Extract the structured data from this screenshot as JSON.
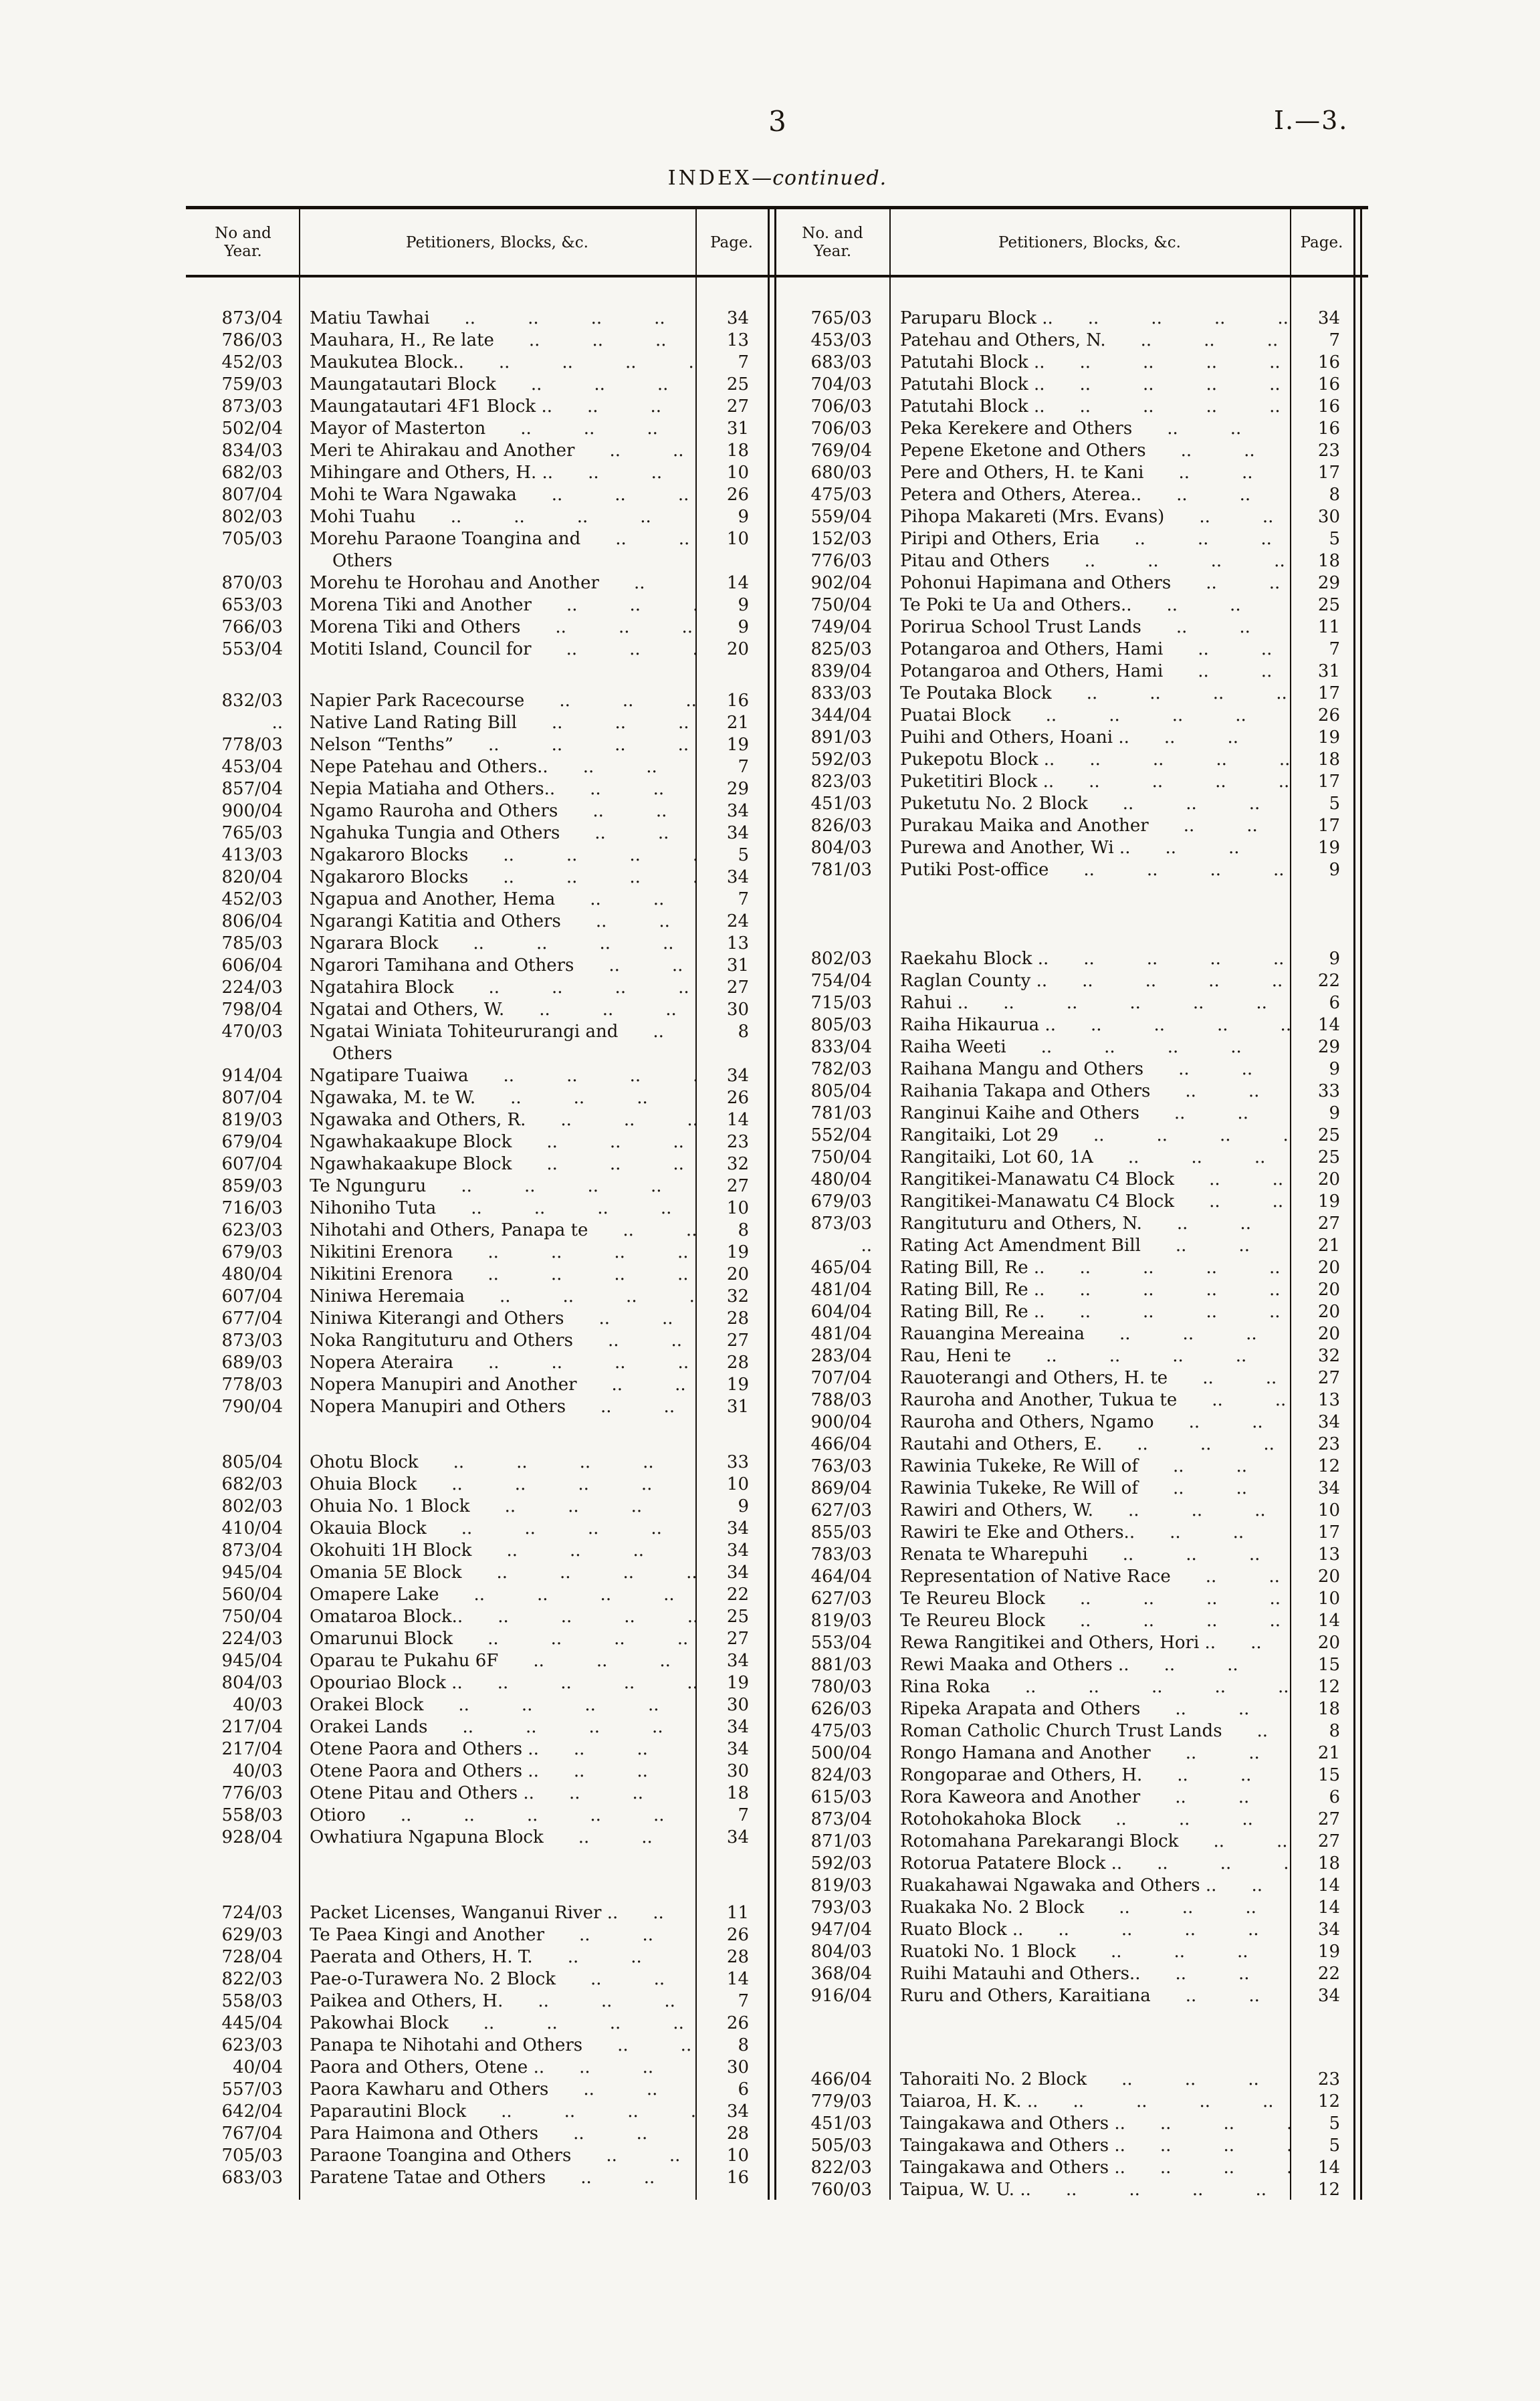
{
  "page": {
    "folio": "3",
    "doc_ref": "I.—3.",
    "title": "INDEX",
    "title_continued": "—continued."
  },
  "table": {
    "left": {
      "headers": {
        "no_year": "No and Year.",
        "petitioners": "Petitioners, Blocks, &c.",
        "page": "Page."
      },
      "rows": [
        {
          "no": "873/04",
          "name": "Matiu Tawhai",
          "page": "34"
        },
        {
          "no": "786/03",
          "name": "Mauhara, H., Re late",
          "page": "13"
        },
        {
          "no": "452/03",
          "name": "Maukutea Block..",
          "page": "7"
        },
        {
          "no": "759/03",
          "name": "Maungatautari Block",
          "page": "25"
        },
        {
          "no": "873/03",
          "name": "Maungatautari 4F1 Block ..",
          "page": "27"
        },
        {
          "no": "502/04",
          "name": "Mayor of Masterton",
          "page": "31"
        },
        {
          "no": "834/03",
          "name": "Meri te Ahirakau and Another",
          "page": "18"
        },
        {
          "no": "682/03",
          "name": "Mihingare and Others, H. ..",
          "page": "10"
        },
        {
          "no": "807/04",
          "name": "Mohi te Wara Ngawaka",
          "page": "26"
        },
        {
          "no": "802/03",
          "name": "Mohi Tuahu",
          "page": "9"
        },
        {
          "no": "705/03",
          "name": "Morehu Paraone Toangina and",
          "name2": "Others",
          "page": "10"
        },
        {
          "no": "870/03",
          "name": "Morehu te Horohau and Another",
          "page": "14"
        },
        {
          "no": "653/03",
          "name": "Morena Tiki and Another",
          "page": "9"
        },
        {
          "no": "766/03",
          "name": "Morena Tiki and Others",
          "page": "9"
        },
        {
          "no": "553/04",
          "name": "Motiti Island, Council for",
          "page": "20"
        },
        {
          "gap": 44
        },
        {
          "no": "832/03",
          "name": "Napier Park Racecourse",
          "page": "16"
        },
        {
          "no": "..",
          "name": "Native Land Rating Bill",
          "page": "21"
        },
        {
          "no": "778/03",
          "name": "Nelson “Tenths”",
          "page": "19"
        },
        {
          "no": "453/04",
          "name": "Nepe Patehau and Others..",
          "page": "7"
        },
        {
          "no": "857/04",
          "name": "Nepia Matiaha and Others..",
          "page": "29"
        },
        {
          "no": "900/04",
          "name": "Ngamo Rauroha and Others",
          "page": "34"
        },
        {
          "no": "765/03",
          "name": "Ngahuka Tungia and Others",
          "page": "34"
        },
        {
          "no": "413/03",
          "name": "Ngakaroro Blocks",
          "page": "5"
        },
        {
          "no": "820/04",
          "name": "Ngakaroro Blocks",
          "page": "34"
        },
        {
          "no": "452/03",
          "name": "Ngapua and Another, Hema",
          "page": "7"
        },
        {
          "no": "806/04",
          "name": "Ngarangi Katitia and Others",
          "page": "24"
        },
        {
          "no": "785/03",
          "name": "Ngarara Block",
          "page": "13"
        },
        {
          "no": "606/04",
          "name": "Ngarori Tamihana and Others",
          "page": "31"
        },
        {
          "no": "224/03",
          "name": "Ngatahira Block",
          "page": "27"
        },
        {
          "no": "798/04",
          "name": "Ngatai and Others, W.",
          "page": "30"
        },
        {
          "no": "470/03",
          "name": "Ngatai Winiata Tohiteururangi and",
          "name2": "Others",
          "page": "8"
        },
        {
          "no": "914/04",
          "name": "Ngatipare Tuaiwa",
          "page": "34"
        },
        {
          "no": "807/04",
          "name": "Ngawaka, M. te W.",
          "page": "26"
        },
        {
          "no": "819/03",
          "name": "Ngawaka and Others, R.",
          "page": "14"
        },
        {
          "no": "679/04",
          "name": "Ngawhakaakupe Block",
          "page": "23"
        },
        {
          "no": "607/04",
          "name": "Ngawhakaakupe Block",
          "page": "32"
        },
        {
          "no": "859/03",
          "name": "Te Ngunguru",
          "page": "27"
        },
        {
          "no": "716/03",
          "name": "Nihoniho Tuta",
          "page": "10"
        },
        {
          "no": "623/03",
          "name": "Nihotahi and Others, Panapa te",
          "page": "8"
        },
        {
          "no": "679/03",
          "name": "Nikitini Erenora",
          "page": "19"
        },
        {
          "no": "480/04",
          "name": "Nikitini Erenora",
          "page": "20"
        },
        {
          "no": "607/04",
          "name": "Niniwa Heremaia",
          "page": "32"
        },
        {
          "no": "677/04",
          "name": "Niniwa Kiterangi and Others",
          "page": "28"
        },
        {
          "no": "873/03",
          "name": "Noka Rangituturu and Others",
          "page": "27"
        },
        {
          "no": "689/03",
          "name": "Nopera Ateraira",
          "page": "28"
        },
        {
          "no": "778/03",
          "name": "Nopera Manupiri and Another",
          "page": "19"
        },
        {
          "no": "790/04",
          "name": "Nopera Manupiri and Others",
          "page": "31"
        },
        {
          "gap": 50
        },
        {
          "no": "805/04",
          "name": "Ohotu Block",
          "page": "33"
        },
        {
          "no": "682/03",
          "name": "Ohuia Block",
          "page": "10"
        },
        {
          "no": "802/03",
          "name": "Ohuia No. 1 Block",
          "page": "9"
        },
        {
          "no": "410/04",
          "name": "Okauia Block",
          "page": "34"
        },
        {
          "no": "873/04",
          "name": "Okohuiti 1H Block",
          "page": "34"
        },
        {
          "no": "945/04",
          "name": "Omania 5E Block",
          "page": "34"
        },
        {
          "no": "560/04",
          "name": "Omapere Lake",
          "page": "22"
        },
        {
          "no": "750/04",
          "name": "Omataroa Block..",
          "page": "25"
        },
        {
          "no": "224/03",
          "name": "Omarunui Block",
          "page": "27"
        },
        {
          "no": "945/04",
          "name": "Oparau te Pukahu 6F",
          "page": "34"
        },
        {
          "no": "804/03",
          "name": "Opouriao Block ..",
          "page": "19"
        },
        {
          "no": "40/03",
          "name": "Orakei Block",
          "page": "30"
        },
        {
          "no": "217/04",
          "name": "Orakei Lands",
          "page": "34"
        },
        {
          "no": "217/04",
          "name": "Otene Paora and Others ..",
          "page": "34"
        },
        {
          "no": "40/03",
          "name": "Otene Paora and Others ..",
          "page": "30"
        },
        {
          "no": "776/03",
          "name": "Otene Pitau and Others ..",
          "page": "18"
        },
        {
          "no": "558/03",
          "name": "Otioro",
          "page": "7"
        },
        {
          "no": "928/04",
          "name": "Owhatiura Ngapuna Block",
          "page": "34"
        },
        {
          "gap": 80
        },
        {
          "no": "724/03",
          "name": "Packet Licenses, Wanganui River ..",
          "page": "11"
        },
        {
          "no": "629/03",
          "name": "Te Paea Kingi and Another",
          "page": "26"
        },
        {
          "no": "728/04",
          "name": "Paerata and Others, H. T.",
          "page": "28"
        },
        {
          "no": "822/03",
          "name": "Pae-o-Turawera No. 2 Block",
          "page": "14"
        },
        {
          "no": "558/03",
          "name": "Paikea and Others, H.",
          "page": "7"
        },
        {
          "no": "445/04",
          "name": "Pakowhai Block",
          "page": "26"
        },
        {
          "no": "623/03",
          "name": "Panapa te Nihotahi and Others",
          "page": "8"
        },
        {
          "no": "40/04",
          "name": "Paora and Others, Otene ..",
          "page": "30"
        },
        {
          "no": "557/03",
          "name": "Paora Kawharu and Others",
          "page": "6"
        },
        {
          "no": "642/04",
          "name": "Paparautini Block",
          "page": "34"
        },
        {
          "no": "767/04",
          "name": "Para Haimona and Others",
          "page": "28"
        },
        {
          "no": "705/03",
          "name": "Paraone Toangina and Others",
          "page": "10"
        },
        {
          "no": "683/03",
          "name": "Paratene Tatae and Others",
          "page": "16"
        }
      ]
    },
    "right": {
      "headers": {
        "no_year": "No. and Year.",
        "petitioners": "Petitioners, Blocks, &c.",
        "page": "Page."
      },
      "rows": [
        {
          "no": "765/03",
          "name": "Paruparu Block ..",
          "page": "34"
        },
        {
          "no": "453/03",
          "name": "Patehau and Others, N.",
          "page": "7"
        },
        {
          "no": "683/03",
          "name": "Patutahi Block ..",
          "page": "16"
        },
        {
          "no": "704/03",
          "name": "Patutahi Block ..",
          "page": "16"
        },
        {
          "no": "706/03",
          "name": "Patutahi Block ..",
          "page": "16"
        },
        {
          "no": "706/03",
          "name": "Peka Kerekere and Others",
          "page": "16"
        },
        {
          "no": "769/04",
          "name": "Pepene Eketone and Others",
          "page": "23"
        },
        {
          "no": "680/03",
          "name": "Pere and Others, H. te Kani",
          "page": "17"
        },
        {
          "no": "475/03",
          "name": "Petera and Others, Aterea..",
          "page": "8"
        },
        {
          "no": "559/04",
          "name": "Pihopa Makareti (Mrs. Evans)",
          "page": "30"
        },
        {
          "no": "152/03",
          "name": "Piripi and Others, Eria",
          "page": "5"
        },
        {
          "no": "776/03",
          "name": "Pitau and Others",
          "page": "18"
        },
        {
          "no": "902/04",
          "name": "Pohonui Hapimana and Others",
          "page": "29"
        },
        {
          "no": "750/04",
          "name": "Te Poki te Ua and Others..",
          "page": "25"
        },
        {
          "no": "749/04",
          "name": "Porirua School Trust Lands",
          "page": "11"
        },
        {
          "no": "825/03",
          "name": "Potangaroa and Others, Hami",
          "page": "7"
        },
        {
          "no": "839/04",
          "name": "Potangaroa and Others, Hami",
          "page": "31"
        },
        {
          "no": "833/03",
          "name": "Te Poutaka Block",
          "page": "17"
        },
        {
          "no": "344/04",
          "name": "Puatai Block",
          "page": "26"
        },
        {
          "no": "891/03",
          "name": "Puihi and Others, Hoani ..",
          "page": "19"
        },
        {
          "no": "592/03",
          "name": "Pukepotu Block ..",
          "page": "18"
        },
        {
          "no": "823/03",
          "name": "Puketitiri Block ..",
          "page": "17"
        },
        {
          "no": "451/03",
          "name": "Puketutu No. 2 Block",
          "page": "5"
        },
        {
          "no": "826/03",
          "name": "Purakau Maika and Another",
          "page": "17"
        },
        {
          "no": "804/03",
          "name": "Purewa and Another, Wi ..",
          "page": "19"
        },
        {
          "no": "781/03",
          "name": "Putiki Post-office",
          "page": "9"
        },
        {
          "gap": 100
        },
        {
          "no": "802/03",
          "name": "Raekahu Block ..",
          "page": "9"
        },
        {
          "no": "754/04",
          "name": "Raglan County ..",
          "page": "22"
        },
        {
          "no": "715/03",
          "name": "Rahui ..",
          "page": "6"
        },
        {
          "no": "805/03",
          "name": "Raiha Hikaurua ..",
          "page": "14"
        },
        {
          "no": "833/04",
          "name": "Raiha Weeti",
          "page": "29"
        },
        {
          "no": "782/03",
          "name": "Raihana Mangu and Others",
          "page": "9"
        },
        {
          "no": "805/04",
          "name": "Raihania Takapa and Others",
          "page": "33"
        },
        {
          "no": "781/03",
          "name": "Ranginui Kaihe and Others",
          "page": "9"
        },
        {
          "no": "552/04",
          "name": "Rangitaiki, Lot 29",
          "page": "25"
        },
        {
          "no": "750/04",
          "name": "Rangitaiki, Lot 60, 1A",
          "page": "25"
        },
        {
          "no": "480/04",
          "name": "Rangitikei-Manawatu C4 Block",
          "page": "20"
        },
        {
          "no": "679/03",
          "name": "Rangitikei-Manawatu C4 Block",
          "page": "19"
        },
        {
          "no": "873/03",
          "name": "Rangituturu and Others, N.",
          "page": "27"
        },
        {
          "no": "..",
          "name": "Rating Act Amendment Bill",
          "page": "21"
        },
        {
          "no": "465/04",
          "name": "Rating Bill, Re ..",
          "page": "20"
        },
        {
          "no": "481/04",
          "name": "Rating Bill, Re ..",
          "page": "20"
        },
        {
          "no": "604/04",
          "name": "Rating Bill, Re ..",
          "page": "20"
        },
        {
          "no": "481/04",
          "name": "Rauangina Mereaina",
          "page": "20"
        },
        {
          "no": "283/04",
          "name": "Rau, Heni te",
          "page": "32"
        },
        {
          "no": "707/04",
          "name": "Rauoterangi and Others, H. te",
          "page": "27"
        },
        {
          "no": "788/03",
          "name": "Rauroha and Another, Tukua te",
          "page": "13"
        },
        {
          "no": "900/04",
          "name": "Rauroha and Others, Ngamo",
          "page": "34"
        },
        {
          "no": "466/04",
          "name": "Rautahi and Others, E.",
          "page": "23"
        },
        {
          "no": "763/03",
          "name": "Rawinia Tukeke, Re Will of",
          "page": "12"
        },
        {
          "no": "869/04",
          "name": "Rawinia Tukeke, Re Will of",
          "page": "34"
        },
        {
          "no": "627/03",
          "name": "Rawiri and Others, W.",
          "page": "10"
        },
        {
          "no": "855/03",
          "name": "Rawiri te Eke and Others..",
          "page": "17"
        },
        {
          "no": "783/03",
          "name": "Renata te Wharepuhi",
          "page": "13"
        },
        {
          "no": "464/04",
          "name": "Representation of Native Race",
          "page": "20"
        },
        {
          "no": "627/03",
          "name": "Te Reureu Block",
          "page": "10"
        },
        {
          "no": "819/03",
          "name": "Te Reureu Block",
          "page": "14"
        },
        {
          "no": "553/04",
          "name": "Rewa Rangitikei and Others, Hori ..",
          "page": "20"
        },
        {
          "no": "881/03",
          "name": "Rewi Maaka and Others ..",
          "page": "15"
        },
        {
          "no": "780/03",
          "name": "Rina Roka",
          "page": "12"
        },
        {
          "no": "626/03",
          "name": "Ripeka Arapata and Others",
          "page": "18"
        },
        {
          "no": "475/03",
          "name": "Roman Catholic Church Trust Lands",
          "page": "8"
        },
        {
          "no": "500/04",
          "name": "Rongo Hamana and Another",
          "page": "21"
        },
        {
          "no": "824/03",
          "name": "Rongoparae and Others, H.",
          "page": "15"
        },
        {
          "no": "615/03",
          "name": "Rora Kaweora and Another",
          "page": "6"
        },
        {
          "no": "873/04",
          "name": "Rotohokahoka Block",
          "page": "27"
        },
        {
          "no": "871/03",
          "name": "Rotomahana Parekarangi Block",
          "page": "27"
        },
        {
          "no": "592/03",
          "name": "Rotorua Patatere Block ..",
          "page": "18"
        },
        {
          "no": "819/03",
          "name": "Ruakahawai Ngawaka and Others ..",
          "page": "14"
        },
        {
          "no": "793/03",
          "name": "Ruakaka No. 2 Block",
          "page": "14"
        },
        {
          "no": "947/04",
          "name": "Ruato Block ..",
          "page": "34"
        },
        {
          "no": "804/03",
          "name": "Ruatoki No. 1 Block",
          "page": "19"
        },
        {
          "no": "368/04",
          "name": "Ruihi Matauhi and Others..",
          "page": "22"
        },
        {
          "no": "916/04",
          "name": "Ruru and Others, Karaitiana",
          "page": "34"
        },
        {
          "gap": 92
        },
        {
          "no": "466/04",
          "name": "Tahoraiti No. 2 Block",
          "page": "23"
        },
        {
          "no": "779/03",
          "name": "Taiaroa, H. K. ..",
          "page": "12"
        },
        {
          "no": "451/03",
          "name": "Taingakawa and Others ..",
          "page": "5"
        },
        {
          "no": "505/03",
          "name": "Taingakawa and Others ..",
          "page": "5"
        },
        {
          "no": "822/03",
          "name": "Taingakawa and Others ..",
          "page": "14"
        },
        {
          "no": "760/03",
          "name": "Taipua, W. U. ..",
          "page": "12"
        }
      ]
    }
  }
}
